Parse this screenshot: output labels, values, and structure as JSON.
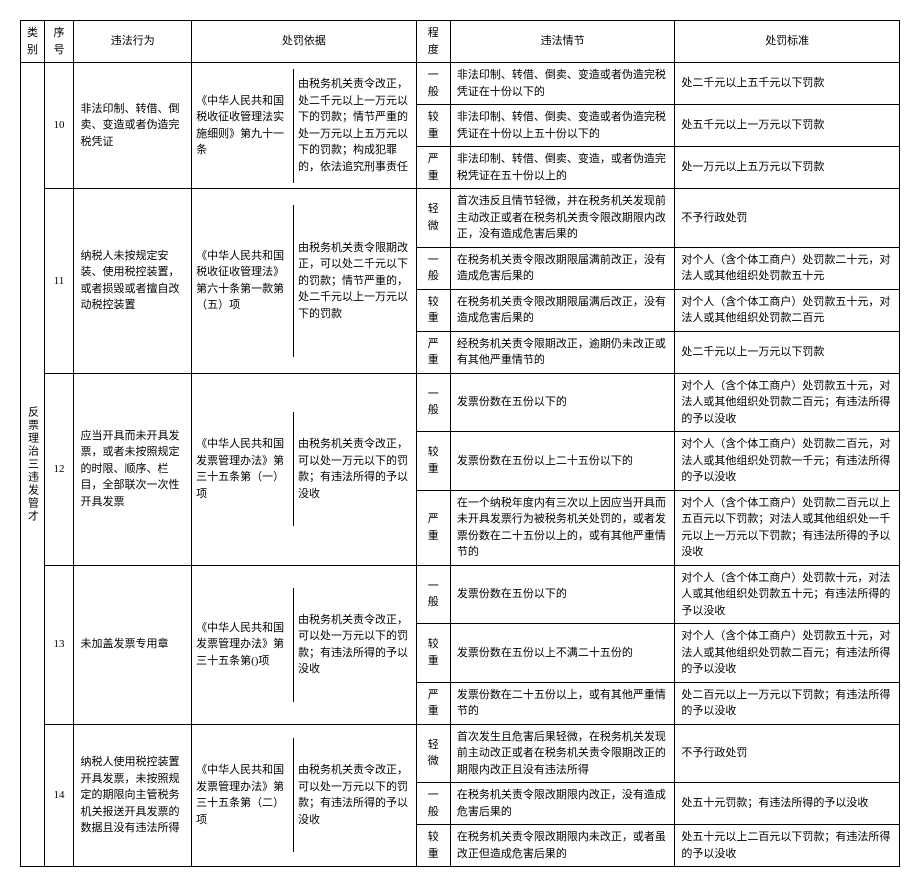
{
  "headers": {
    "category": "类别",
    "no": "序号",
    "act": "违法行为",
    "basis": "处罚依据",
    "level": "程度",
    "detail": "违法情节",
    "standard": "处罚标准"
  },
  "category_label": "反票理治三违发管才",
  "rows": [
    {
      "no": "10",
      "act": "非法印制、转借、倒卖、变造或者伪造完税凭证",
      "basis_l": "《中华人民共和国税收征收管理法实施细则》第九十一条",
      "basis_r": "由税务机关责令改正，处二千元以上一万元以下的罚款；情节严重的处一万元以上五万元以下的罚款；构成犯罪的，依法追究刑事责任",
      "levels": [
        {
          "level": "一般",
          "detail": "非法印制、转借、倒卖、变造或者伪造完税凭证在十份以下的",
          "standard": "处二千元以上五千元以下罚款"
        },
        {
          "level": "较重",
          "detail": "非法印制、转借、倒卖、变造或者伪造完税凭证在十份以上五十份以下的",
          "standard": "处五千元以上一万元以下罚款"
        },
        {
          "level": "严重",
          "detail": "非法印制、转借、倒卖、变造，或者伪造完税凭证在五十份以上的",
          "standard": "处一万元以上五万元以下罚款"
        }
      ]
    },
    {
      "no": "11",
      "act": "纳税人未按规定安装、使用税控装置，或者损毁或者擅自改动税控装置",
      "basis_l": "《中华人民共和国税收征收管理法》第六十条第一款第（五）项",
      "basis_r": "由税务机关责令限期改正，可以处二千元以下的罚款；情节严重的，处二千元以上一万元以下的罚款",
      "levels": [
        {
          "level": "轻微",
          "detail": "首次违反且情节轻微，并在税务机关发现前主动改正或者在税务机关责令限改期限内改正，没有造成危害后果的",
          "standard": "不予行政处罚"
        },
        {
          "level": "一般",
          "detail": "在税务机关责令限改期限届满前改正，没有造成危害后果的",
          "standard": "对个人（含个体工商户）处罚款二十元，对法人或其他组织处罚款五十元"
        },
        {
          "level": "较重",
          "detail": "在税务机关责令限改期限届满后改正，没有造成危害后果的",
          "standard": "对个人（含个体工商户）处罚款五十元，对法人或其他组织处罚款二百元"
        },
        {
          "level": "严重",
          "detail": "经税务机关责令限期改正，逾期仍未改正或有其他严重情节的",
          "standard": "处二千元以上一万元以下罚款"
        }
      ]
    },
    {
      "no": "12",
      "act": "应当开具而未开具发票，或者未按照规定的时限、顺序、栏目，全部联次一次性开具发票",
      "basis_l": "《中华人民共和国发票管理办法》第三十五条第（一）项",
      "basis_r": "由税务机关责令改正，可以处一万元以下的罚款；有违法所得的予以没收",
      "levels": [
        {
          "level": "一般",
          "detail": "发票份数在五份以下的",
          "standard": "对个人（含个体工商户）处罚款五十元，对法人或其他组织处罚款二百元；有违法所得的予以没收"
        },
        {
          "level": "较重",
          "detail": "发票份数在五份以上二十五份以下的",
          "standard": "对个人（含个体工商户）处罚款二百元，对法人或其他组织处罚款一千元；有违法所得的予以没收"
        },
        {
          "level": "严重",
          "detail": "在一个纳税年度内有三次以上因应当开具而未开具发票行为被税务机关处罚的，或者发票份数在二十五份以上的，或有其他严重情节的",
          "standard": "对个人（含个体工商户）处罚款二百元以上五百元以下罚款；对法人或其他组织处一千元以上一万元以下罚款；有违法所得的予以没收"
        }
      ]
    },
    {
      "no": "13",
      "act": "未加盖发票专用章",
      "basis_l": "《中华人民共和国发票管理办法》第三十五条第()项",
      "basis_r": "由税务机关责令改正，可以处一万元以下的罚款；有违法所得的予以没收",
      "levels": [
        {
          "level": "一般",
          "detail": "发票份数在五份以下的",
          "standard": "对个人（含个体工商户）处罚款十元，对法人或其他组织处罚款五十元；有违法所得的予以没收"
        },
        {
          "level": "较重",
          "detail": "发票份数在五份以上不满二十五份的",
          "standard": "对个人（含个体工商户）处罚款五十元，对法人或其他组织处罚款二百元；有违法所得的予以没收"
        },
        {
          "level": "严重",
          "detail": "发票份数在二十五份以上，或有其他严重情节的",
          "standard": "处二百元以上一万元以下罚款；有违法所得的予以没收"
        }
      ]
    },
    {
      "no": "14",
      "act": "纳税人使用税控装置开具发票，未按照规定的期限向主管税务机关报送开具发票的数据且没有违法所得",
      "basis_l": "《中华人民共和国发票管理办法》第三十五条第（二）项",
      "basis_r": "由税务机关责令改正，可以处一万元以下的罚款；有违法所得的予以没收",
      "levels": [
        {
          "level": "轻微",
          "detail": "首次发生且危害后果轻微，在税务机关发现前主动改正或者在税务机关责令限期改正的期限内改正且没有违法所得",
          "standard": "不予行政处罚"
        },
        {
          "level": "一般",
          "detail": "在税务机关责令限改期限内改正，没有造成危害后果的",
          "standard": "处五十元罚款；有违法所得的予以没收"
        },
        {
          "level": "较重",
          "detail": "在税务机关责令限改期限内未改正，或者虽改正但造成危害后果的",
          "standard": "处五十元以上二百元以下罚款；有违法所得的予以没收"
        }
      ]
    }
  ]
}
